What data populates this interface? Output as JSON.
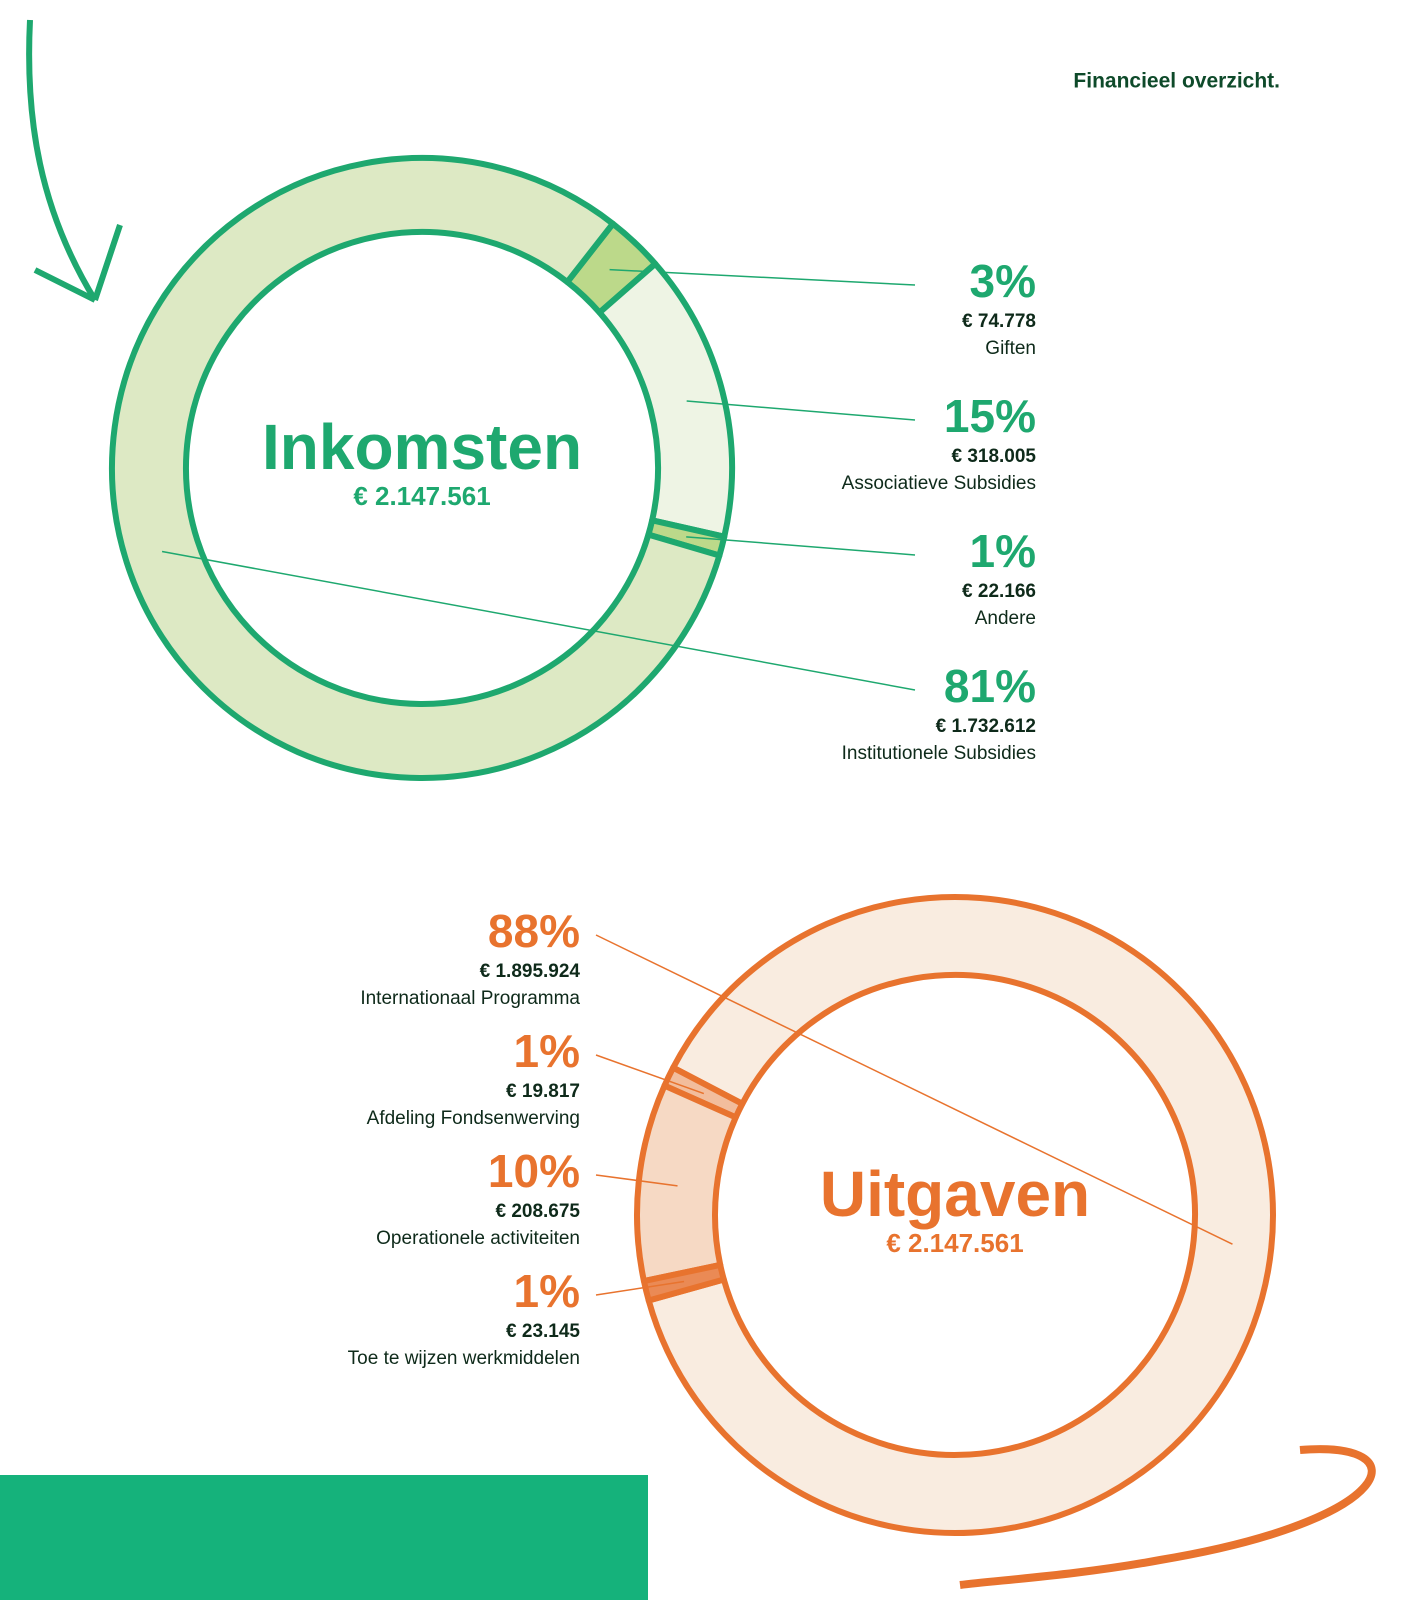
{
  "page_title": "Financieel overzicht.",
  "chart_data": [
    {
      "type": "pie",
      "title": "Inkomsten",
      "total": "€ 2.147.561",
      "categories": [
        "Giften",
        "Associatieve Subsidies",
        "Andere",
        "Institutionele Subsidies"
      ],
      "values": [
        3,
        15,
        1,
        81
      ],
      "value_labels": [
        "3%",
        "15%",
        "1%",
        "81%"
      ],
      "amounts": [
        "€ 74.778",
        "€ 318.005",
        "€ 22.166",
        "€ 1.732.612"
      ],
      "colors": [
        "#bcd98a",
        "#eef4e4",
        "#bcd98a",
        "#dde9c4"
      ],
      "stroke": "#1ea86f"
    },
    {
      "type": "pie",
      "title": "Uitgaven",
      "total": "€ 2.147.561",
      "categories": [
        "Internationaal Programma",
        "Afdeling Fondsenwerving",
        "Operationele activiteiten",
        "Toe te wijzen werkmiddelen"
      ],
      "values": [
        88,
        1,
        10,
        1
      ],
      "value_labels": [
        "88%",
        "1%",
        "10%",
        "1%"
      ],
      "amounts": [
        "€ 1.895.924",
        "€ 19.817",
        "€ 208.675",
        "€ 23.145"
      ],
      "colors": [
        "#f9ece0",
        "#f2bd9c",
        "#f6d9c4",
        "#ea8a55"
      ],
      "stroke": "#e8732e"
    }
  ]
}
